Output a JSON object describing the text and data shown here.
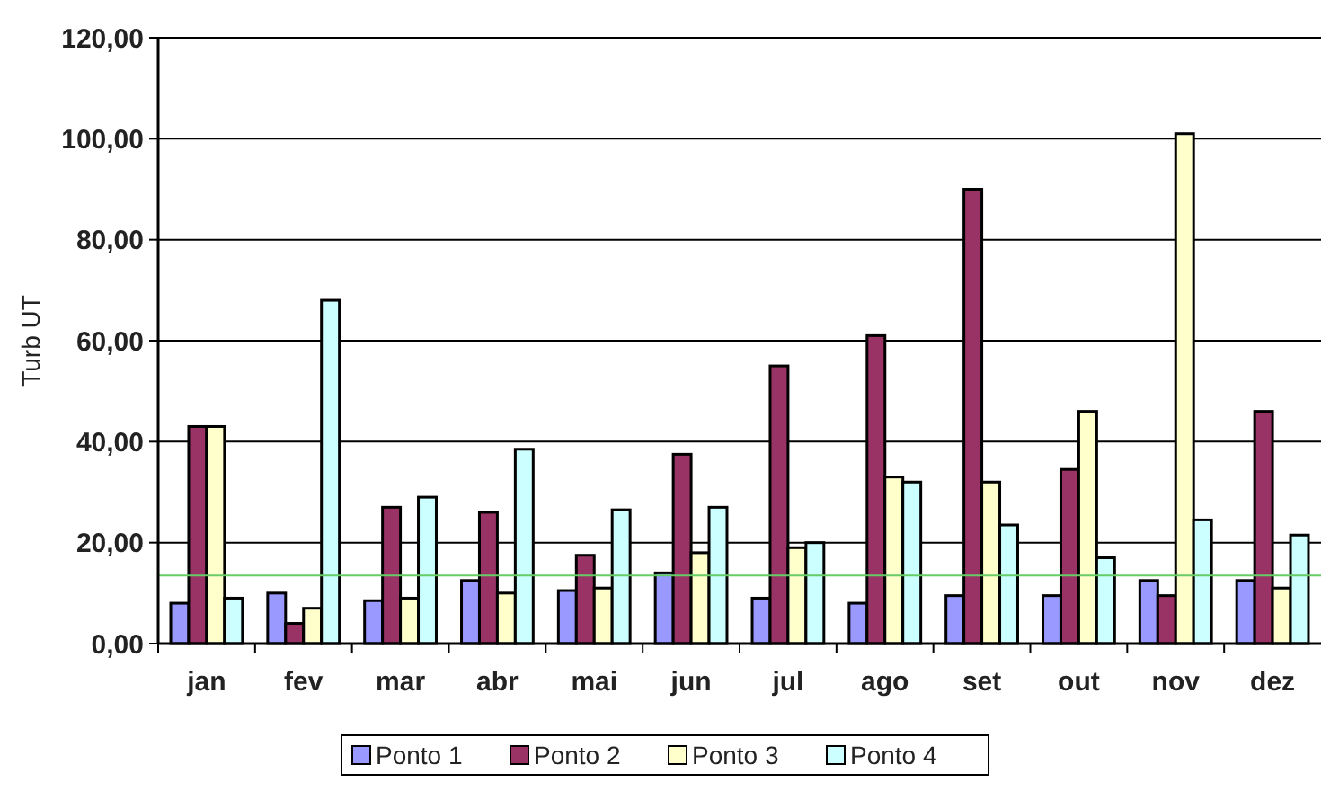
{
  "chart_data": {
    "type": "bar",
    "ylabel": "Turb UT",
    "categories": [
      "jan",
      "fev",
      "mar",
      "abr",
      "mai",
      "jun",
      "jul",
      "ago",
      "set",
      "out",
      "nov",
      "dez"
    ],
    "series": [
      {
        "name": "Ponto 1",
        "color": "#9999ff",
        "values": [
          8,
          10,
          8.5,
          12.5,
          10.5,
          14,
          9,
          8,
          9.5,
          9.5,
          12.5,
          12.5
        ]
      },
      {
        "name": "Ponto 2",
        "color": "#993366",
        "values": [
          43,
          4,
          27,
          26,
          17.5,
          37.5,
          55,
          61,
          90,
          34.5,
          9.5,
          46
        ]
      },
      {
        "name": "Ponto 3",
        "color": "#ffffcc",
        "values": [
          43,
          7,
          9,
          10,
          11,
          18,
          19,
          33,
          32,
          46,
          101,
          11
        ]
      },
      {
        "name": "Ponto 4",
        "color": "#ccffff",
        "values": [
          9,
          68,
          29,
          38.5,
          26.5,
          27,
          20,
          32,
          23.5,
          17,
          24.5,
          21.5
        ]
      }
    ],
    "ylim": [
      0,
      120
    ],
    "yticks": [
      {
        "value": 0,
        "label": "0,00"
      },
      {
        "value": 20,
        "label": "20,00"
      },
      {
        "value": 40,
        "label": "40,00"
      },
      {
        "value": 60,
        "label": "60,00"
      },
      {
        "value": 80,
        "label": "80,00"
      },
      {
        "value": 100,
        "label": "100,00"
      },
      {
        "value": 120,
        "label": "120,00"
      }
    ],
    "ref_lines": [
      {
        "axis": "y",
        "value": 13.5,
        "color": "#66cc66"
      }
    ],
    "grid": "y",
    "legend": "bottom"
  }
}
